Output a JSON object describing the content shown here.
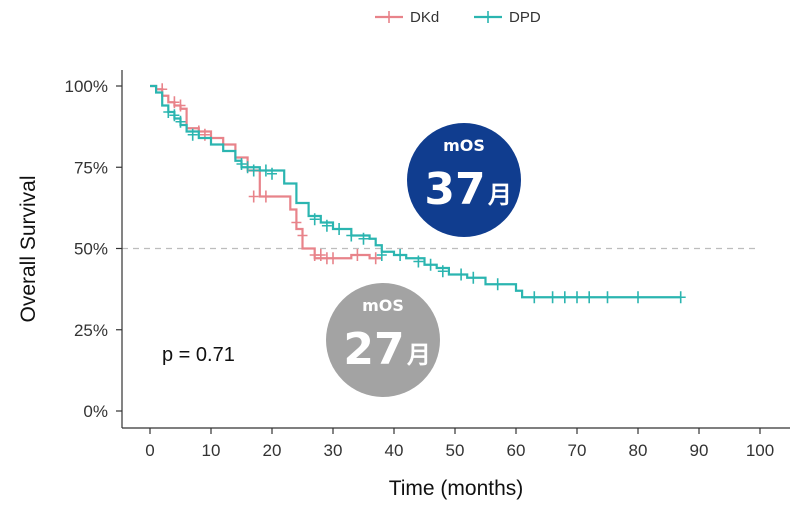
{
  "chart_data": {
    "type": "line",
    "subtype": "kaplan-meier",
    "xlabel": "Time (months)",
    "ylabel": "Overall Survival",
    "xlim": [
      0,
      100
    ],
    "ylim": [
      0,
      1
    ],
    "x_ticks": [
      0,
      10,
      20,
      30,
      40,
      50,
      60,
      70,
      80,
      90,
      100
    ],
    "y_ticks": [
      {
        "value": 0,
        "label": "0%"
      },
      {
        "value": 0.25,
        "label": "25%"
      },
      {
        "value": 0.5,
        "label": "50%"
      },
      {
        "value": 0.75,
        "label": "75%"
      },
      {
        "value": 1.0,
        "label": "100%"
      }
    ],
    "reference_line": {
      "y": 0.5,
      "style": "dashed",
      "color": "#bdbdbd"
    },
    "legend": {
      "placement": "top-center",
      "entries": [
        "DKd",
        "DPD"
      ]
    },
    "annotation": "p = 0.71",
    "series": [
      {
        "name": "DKd",
        "color": "#e8838a",
        "steps": [
          [
            0,
            1.0
          ],
          [
            1,
            0.99
          ],
          [
            2,
            0.97
          ],
          [
            3,
            0.95
          ],
          [
            4,
            0.94
          ],
          [
            5,
            0.93
          ],
          [
            6,
            0.87
          ],
          [
            8,
            0.86
          ],
          [
            10,
            0.84
          ],
          [
            12,
            0.82
          ],
          [
            14,
            0.78
          ],
          [
            16,
            0.74
          ],
          [
            18,
            0.66
          ],
          [
            20,
            0.66
          ],
          [
            22,
            0.66
          ],
          [
            23,
            0.62
          ],
          [
            24,
            0.56
          ],
          [
            25,
            0.5
          ],
          [
            27,
            0.47
          ],
          [
            30,
            0.47
          ],
          [
            33,
            0.48
          ],
          [
            36,
            0.47
          ],
          [
            38,
            0.47
          ]
        ],
        "censored": [
          [
            2,
            0.99
          ],
          [
            4,
            0.95
          ],
          [
            5,
            0.94
          ],
          [
            8,
            0.86
          ],
          [
            9,
            0.85
          ],
          [
            12,
            0.82
          ],
          [
            17,
            0.66
          ],
          [
            19,
            0.66
          ],
          [
            24,
            0.58
          ],
          [
            25,
            0.54
          ],
          [
            27,
            0.48
          ],
          [
            28,
            0.48
          ],
          [
            29,
            0.47
          ],
          [
            30,
            0.47
          ],
          [
            34,
            0.48
          ],
          [
            37,
            0.47
          ]
        ]
      },
      {
        "name": "DPD",
        "color": "#2bb5b0",
        "steps": [
          [
            0,
            1.0
          ],
          [
            1,
            0.98
          ],
          [
            2,
            0.94
          ],
          [
            3,
            0.92
          ],
          [
            4,
            0.9
          ],
          [
            5,
            0.88
          ],
          [
            6,
            0.86
          ],
          [
            8,
            0.84
          ],
          [
            10,
            0.82
          ],
          [
            12,
            0.8
          ],
          [
            14,
            0.77
          ],
          [
            15,
            0.75
          ],
          [
            18,
            0.74
          ],
          [
            20,
            0.74
          ],
          [
            22,
            0.7
          ],
          [
            24,
            0.64
          ],
          [
            26,
            0.6
          ],
          [
            28,
            0.58
          ],
          [
            30,
            0.56
          ],
          [
            33,
            0.54
          ],
          [
            36,
            0.53
          ],
          [
            37,
            0.51
          ],
          [
            38,
            0.49
          ],
          [
            40,
            0.48
          ],
          [
            42,
            0.47
          ],
          [
            45,
            0.45
          ],
          [
            47,
            0.44
          ],
          [
            49,
            0.42
          ],
          [
            52,
            0.41
          ],
          [
            55,
            0.39
          ],
          [
            60,
            0.37
          ],
          [
            61,
            0.35
          ],
          [
            70,
            0.35
          ],
          [
            80,
            0.35
          ],
          [
            87,
            0.35
          ]
        ],
        "censored": [
          [
            3,
            0.92
          ],
          [
            4,
            0.91
          ],
          [
            5,
            0.89
          ],
          [
            7,
            0.85
          ],
          [
            15,
            0.76
          ],
          [
            16,
            0.75
          ],
          [
            17,
            0.74
          ],
          [
            19,
            0.74
          ],
          [
            20,
            0.73
          ],
          [
            27,
            0.59
          ],
          [
            29,
            0.57
          ],
          [
            31,
            0.56
          ],
          [
            33,
            0.54
          ],
          [
            35,
            0.53
          ],
          [
            38,
            0.48
          ],
          [
            41,
            0.48
          ],
          [
            44,
            0.46
          ],
          [
            46,
            0.45
          ],
          [
            48,
            0.43
          ],
          [
            51,
            0.42
          ],
          [
            53,
            0.41
          ],
          [
            57,
            0.39
          ],
          [
            63,
            0.35
          ],
          [
            66,
            0.35
          ],
          [
            68,
            0.35
          ],
          [
            70,
            0.35
          ],
          [
            72,
            0.35
          ],
          [
            75,
            0.35
          ],
          [
            80,
            0.35
          ],
          [
            87,
            0.35
          ]
        ]
      }
    ]
  },
  "badges": [
    {
      "id": "dpd",
      "label": "mOS",
      "value": "37",
      "unit": "月",
      "color": "#103d8f"
    },
    {
      "id": "dkd",
      "label": "mOS",
      "value": "27",
      "unit": "月",
      "color": "#a3a3a3"
    }
  ]
}
